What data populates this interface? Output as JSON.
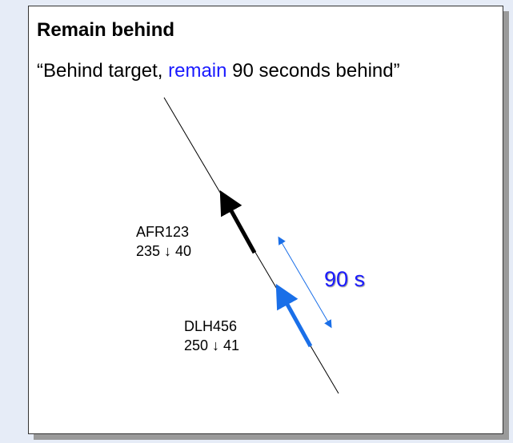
{
  "title": "Remain behind",
  "instruction": {
    "before": "“Behind target, ",
    "keyword": "remain",
    "after": " 90 seconds behind”"
  },
  "aircraft": [
    {
      "callsign": "AFR123",
      "info": "235 ↓ 40"
    },
    {
      "callsign": "DLH456",
      "info": "250 ↓ 41"
    }
  ],
  "spacing_label": "90 s"
}
